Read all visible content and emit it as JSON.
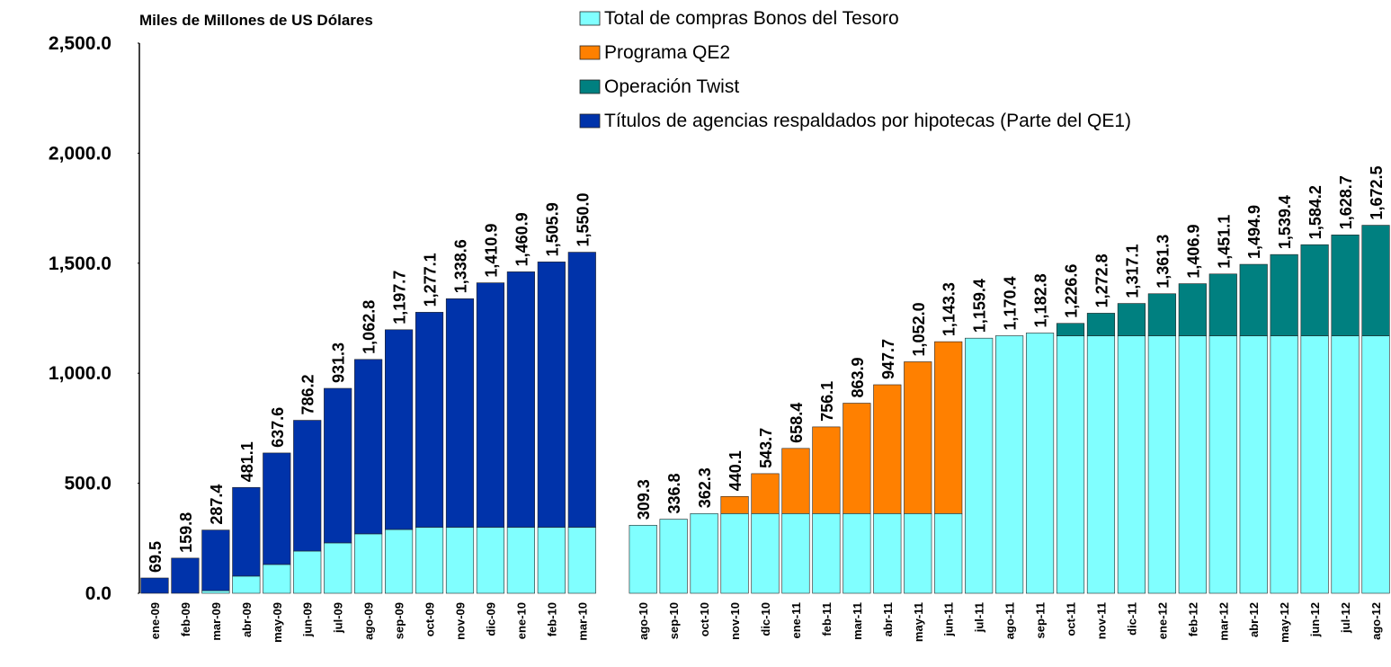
{
  "chart_data": {
    "type": "stacked_bar",
    "ylabel": "Miles de Millones de US Dólares",
    "categories": [
      "ene-09",
      "feb-09",
      "mar-09",
      "abr-09",
      "may-09",
      "jun-09",
      "jul-09",
      "ago-09",
      "sep-09",
      "oct-09",
      "nov-09",
      "dic-09",
      "ene-10",
      "feb-10",
      "mar-10",
      null,
      "ago-10",
      "sep-10",
      "oct-10",
      "nov-10",
      "dic-10",
      "ene-11",
      "feb-11",
      "mar-11",
      "abr-11",
      "may-11",
      "jun-11",
      "jul-11",
      "ago-11",
      "sep-11",
      "oct-11",
      "nov-11",
      "dic-11",
      "ene-12",
      "feb-12",
      "mar-12",
      "abr-12",
      "may-12",
      "jun-12",
      "jul-12",
      "ago-12"
    ],
    "series": [
      {
        "name": "Total de compras Bonos del Tesoro",
        "color": "#80ffff",
        "values": [
          null,
          null,
          12,
          78,
          131,
          192,
          229,
          270,
          290,
          300,
          300,
          300,
          300,
          300,
          300,
          null,
          309.3,
          336.8,
          362.3,
          362.3,
          362.3,
          362.3,
          362.3,
          362.3,
          362.3,
          362.3,
          362.3,
          1159.4,
          1170.4,
          1182.8,
          1170,
          1170,
          1170,
          1170,
          1170,
          1170,
          1170,
          1170,
          1170,
          1170,
          1170
        ]
      },
      {
        "name": "Programa QE2",
        "color": "#ff8000",
        "values": [
          null,
          null,
          null,
          null,
          null,
          null,
          null,
          null,
          null,
          null,
          null,
          null,
          null,
          null,
          null,
          null,
          null,
          null,
          null,
          77.8,
          181.4,
          296.1,
          393.8,
          501.6,
          585.4,
          689.7,
          781.0,
          null,
          null,
          null,
          null,
          null,
          null,
          null,
          null,
          null,
          null,
          null,
          null,
          null,
          null
        ]
      },
      {
        "name": "Operación Twist",
        "color": "#008080",
        "values": [
          null,
          null,
          null,
          null,
          null,
          null,
          null,
          null,
          null,
          null,
          null,
          null,
          null,
          null,
          null,
          null,
          null,
          null,
          null,
          null,
          null,
          null,
          null,
          null,
          null,
          null,
          null,
          null,
          null,
          null,
          56.6,
          102.8,
          147.1,
          191.3,
          236.9,
          281.1,
          324.9,
          369.4,
          414.2,
          458.7,
          502.5
        ]
      },
      {
        "name": "Títulos de agencias respaldados por hipotecas (Parte del QE1)",
        "color": "#0033aa",
        "values": [
          69.5,
          159.8,
          275.4,
          403.1,
          506.6,
          594.2,
          702.3,
          792.8,
          907.7,
          977.1,
          1038.6,
          1110.9,
          1160.9,
          1205.9,
          1250.0,
          null,
          null,
          null,
          null,
          null,
          null,
          null,
          null,
          null,
          null,
          null,
          null,
          null,
          null,
          null,
          null,
          null,
          null,
          null,
          null,
          null,
          null,
          null,
          null,
          null,
          null
        ]
      }
    ],
    "totals": {
      "values": [
        69.5,
        159.8,
        287.4,
        481.1,
        637.6,
        786.2,
        931.3,
        1062.8,
        1197.7,
        1277.1,
        1338.6,
        1410.9,
        1460.9,
        1505.9,
        1550.0,
        null,
        309.3,
        336.8,
        362.3,
        440.1,
        543.7,
        658.4,
        756.1,
        863.9,
        947.7,
        1052.0,
        1143.3,
        1159.4,
        1170.4,
        1182.8,
        1226.6,
        1272.8,
        1317.1,
        1361.3,
        1406.9,
        1451.1,
        1494.9,
        1539.4,
        1584.2,
        1628.7,
        1672.5
      ],
      "value_labels": [
        "69.5",
        "159.8",
        "287.4",
        "481.1",
        "637.6",
        "786.2",
        "931.3",
        "1,062.8",
        "1,197.7",
        "1,277.1",
        "1,338.6",
        "1,410.9",
        "1,460.9",
        "1,505.9",
        "1,550.0",
        null,
        "309.3",
        "336.8",
        "362.3",
        "440.1",
        "543.7",
        "658.4",
        "756.1",
        "863.9",
        "947.7",
        "1,052.0",
        "1,143.3",
        "1,159.4",
        "1,170.4",
        "1,182.8",
        "1,226.6",
        "1,272.8",
        "1,317.1",
        "1,361.3",
        "1,406.9",
        "1,451.1",
        "1,494.9",
        "1,539.4",
        "1,584.2",
        "1,628.7",
        "1,672.5"
      ]
    },
    "ylim": [
      0,
      2500
    ],
    "yticks": [
      {
        "value": 0,
        "label": "0.0"
      },
      {
        "value": 500,
        "label": "500.0"
      },
      {
        "value": 1000,
        "label": "1,000.0"
      },
      {
        "value": 1500,
        "label": "1,500.0"
      },
      {
        "value": 2000,
        "label": "2,000.0"
      },
      {
        "value": 2500,
        "label": "2,500.0"
      }
    ],
    "legend": "top-right"
  }
}
